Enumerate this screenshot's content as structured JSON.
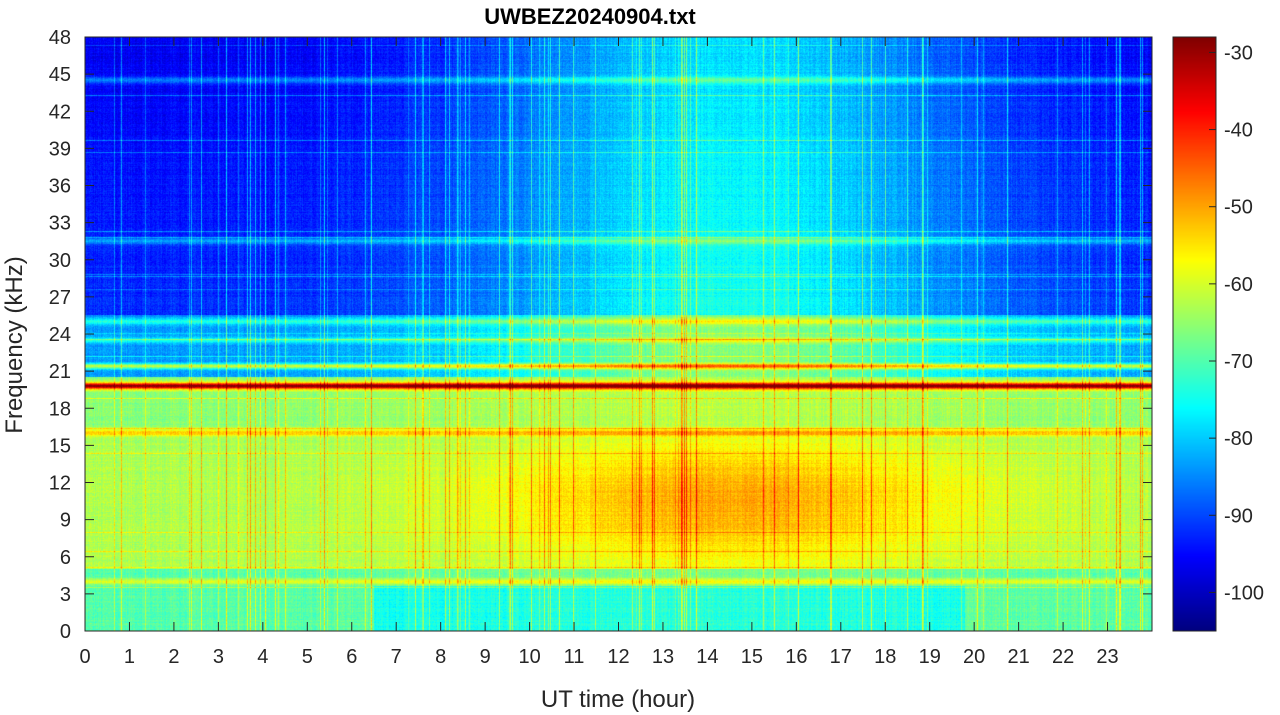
{
  "chart_data": {
    "type": "heatmap",
    "title": "UWBEZ20240904.txt",
    "xlabel": "UT time (hour)",
    "ylabel": "Frequency (kHz)",
    "xlim": [
      0,
      24
    ],
    "ylim": [
      0,
      48
    ],
    "x_ticks": [
      0,
      1,
      2,
      3,
      4,
      5,
      6,
      7,
      8,
      9,
      10,
      11,
      12,
      13,
      14,
      15,
      16,
      17,
      18,
      19,
      20,
      21,
      22,
      23
    ],
    "x_tick_labels": [
      "0",
      "1",
      "2",
      "3",
      "4",
      "5",
      "6",
      "7",
      "8",
      "9",
      "10",
      "11",
      "12",
      "13",
      "14",
      "15",
      "16",
      "17",
      "18",
      "19",
      "20",
      "21",
      "22",
      "23"
    ],
    "y_ticks": [
      0,
      3,
      6,
      9,
      12,
      15,
      18,
      21,
      24,
      27,
      30,
      33,
      36,
      39,
      42,
      45,
      48
    ],
    "y_tick_labels": [
      "0",
      "3",
      "6",
      "9",
      "12",
      "15",
      "18",
      "21",
      "24",
      "27",
      "30",
      "33",
      "36",
      "39",
      "42",
      "45",
      "48"
    ],
    "colorbar": {
      "colormap": "jet",
      "clim": [
        -105,
        -28
      ],
      "ticks": [
        -100,
        -90,
        -80,
        -70,
        -60,
        -50,
        -40,
        -30
      ],
      "tick_labels": [
        "-100",
        "-90",
        "-80",
        "-70",
        "-60",
        "-50",
        "-40",
        "-30"
      ]
    },
    "features": {
      "strong_lines_khz": [
        19.8,
        21.4
      ],
      "persistent_lines_khz": [
        44.5,
        31.5,
        25.0,
        23.5,
        16.0,
        4.0
      ],
      "enhanced_band_khz": [
        6,
        16
      ],
      "enhanced_band_peak_hours": [
        10,
        19
      ],
      "quiet_high_band_hours": [
        [
          0.5,
          6.5
        ],
        [
          20,
          24
        ]
      ]
    }
  }
}
